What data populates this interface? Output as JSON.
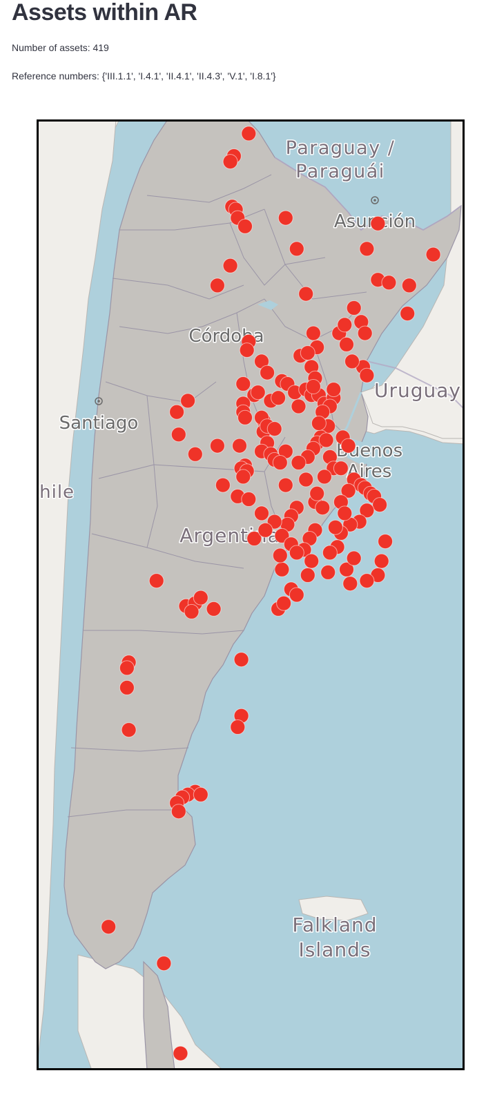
{
  "page": {
    "title": "Assets within AR",
    "count_text": "Number of assets: 419",
    "refs_text": "Reference numbers: {'III.1.1', 'I.4.1', 'II.4.1', 'II.4.3', 'V.1', 'I.8.1'}"
  },
  "map": {
    "country": "Argentina",
    "place_labels": [
      {
        "id": "paraguay",
        "lines": [
          "Paraguay /",
          "Paraguái"
        ],
        "kind": "country"
      },
      {
        "id": "asuncion",
        "lines": [
          "Asunción"
        ],
        "kind": "city"
      },
      {
        "id": "uruguay",
        "lines": [
          "Uruguay"
        ],
        "kind": "country"
      },
      {
        "id": "santiago",
        "lines": [
          "Santiago"
        ],
        "kind": "city"
      },
      {
        "id": "chile",
        "lines": [
          "Chile"
        ],
        "kind": "country"
      },
      {
        "id": "cordoba",
        "lines": [
          "Córdoba"
        ],
        "kind": "city"
      },
      {
        "id": "buenos-aires",
        "lines": [
          "Buenos",
          "Aires"
        ],
        "kind": "city"
      },
      {
        "id": "argentina",
        "lines": [
          "Argentina"
        ],
        "kind": "country"
      },
      {
        "id": "falklands",
        "lines": [
          "Falkland",
          "Islands"
        ],
        "kind": "country"
      }
    ],
    "colors": {
      "sea": "#aed0dc",
      "land": "#f0eeea",
      "country_fill": "#c5c2be",
      "borders": "#9a94a6",
      "marker": "#ef3328"
    },
    "markers": [
      [
        -22.1,
        -64.6
      ],
      [
        -22.9,
        -65.4
      ],
      [
        -23.1,
        -65.6
      ],
      [
        -24.7,
        -65.5
      ],
      [
        -24.8,
        -65.3
      ],
      [
        -25.1,
        -65.2
      ],
      [
        -25.4,
        -64.8
      ],
      [
        -26.8,
        -65.6
      ],
      [
        -27.5,
        -66.3
      ],
      [
        -26.2,
        -58.2
      ],
      [
        -25.3,
        -57.6
      ],
      [
        -26.4,
        -54.6
      ],
      [
        -27.5,
        -55.9
      ],
      [
        -27.3,
        -57.6
      ],
      [
        -27.4,
        -57.0
      ],
      [
        -28.3,
        -58.9
      ],
      [
        -28.8,
        -58.5
      ],
      [
        -29.2,
        -58.3
      ],
      [
        -29.2,
        -59.7
      ],
      [
        -28.9,
        -59.4
      ],
      [
        -29.6,
        -59.3
      ],
      [
        -28.5,
        -56.0
      ],
      [
        -30.4,
        -58.4
      ],
      [
        -30.2,
        -59.0
      ],
      [
        -30.7,
        -58.2
      ],
      [
        -29.5,
        -64.6
      ],
      [
        -29.8,
        -64.7
      ],
      [
        -30.2,
        -63.9
      ],
      [
        -30.6,
        -63.6
      ],
      [
        -31.4,
        -64.3
      ],
      [
        -31.7,
        -64.9
      ],
      [
        -31.0,
        -64.9
      ],
      [
        -31.3,
        -64.1
      ],
      [
        -31.6,
        -63.4
      ],
      [
        -31.5,
        -63.0
      ],
      [
        -32.3,
        -63.8
      ],
      [
        -32.2,
        -63.9
      ],
      [
        -32.7,
        -63.8
      ],
      [
        -33.1,
        -63.6
      ],
      [
        -33.4,
        -63.9
      ],
      [
        -32.5,
        -63.6
      ],
      [
        -32.6,
        -63.2
      ],
      [
        -33.5,
        -63.4
      ],
      [
        -33.7,
        -63.2
      ],
      [
        -32.0,
        -64.9
      ],
      [
        -32.2,
        -64.8
      ],
      [
        -31.6,
        -67.9
      ],
      [
        -32.0,
        -68.5
      ],
      [
        -32.8,
        -68.4
      ],
      [
        -33.5,
        -67.5
      ],
      [
        -33.2,
        -66.3
      ],
      [
        -33.2,
        -65.1
      ],
      [
        -33.9,
        -64.8
      ],
      [
        -34.0,
        -65.0
      ],
      [
        -34.1,
        -64.7
      ],
      [
        -34.3,
        -64.9
      ],
      [
        -34.6,
        -66.0
      ],
      [
        -35.0,
        -65.2
      ],
      [
        -35.1,
        -64.6
      ],
      [
        -30.9,
        -62.8
      ],
      [
        -31.0,
        -62.5
      ],
      [
        -31.3,
        -62.1
      ],
      [
        -31.2,
        -61.5
      ],
      [
        -31.4,
        -61.2
      ],
      [
        -31.4,
        -60.8
      ],
      [
        -31.7,
        -60.5
      ],
      [
        -31.5,
        -60.0
      ],
      [
        -31.8,
        -60.2
      ],
      [
        -32.0,
        -60.6
      ],
      [
        -32.5,
        -60.3
      ],
      [
        -32.9,
        -60.7
      ],
      [
        -33.1,
        -60.9
      ],
      [
        -33.3,
        -61.1
      ],
      [
        -33.6,
        -61.4
      ],
      [
        -32.4,
        -60.8
      ],
      [
        -33.0,
        -60.4
      ],
      [
        -33.6,
        -60.2
      ],
      [
        -34.0,
        -60.0
      ],
      [
        -34.3,
        -60.5
      ],
      [
        -34.0,
        -59.6
      ],
      [
        -34.4,
        -58.9
      ],
      [
        -34.6,
        -58.5
      ],
      [
        -34.7,
        -58.3
      ],
      [
        -34.9,
        -58.0
      ],
      [
        -35.0,
        -57.8
      ],
      [
        -35.3,
        -57.5
      ],
      [
        -35.5,
        -58.2
      ],
      [
        -35.9,
        -58.6
      ],
      [
        -36.0,
        -59.1
      ],
      [
        -36.3,
        -59.6
      ],
      [
        -36.8,
        -59.8
      ],
      [
        -37.0,
        -60.2
      ],
      [
        -36.6,
        -57.2
      ],
      [
        -37.3,
        -57.4
      ],
      [
        -37.8,
        -57.6
      ],
      [
        -38.0,
        -58.2
      ],
      [
        -38.1,
        -59.1
      ],
      [
        -37.6,
        -59.3
      ],
      [
        -37.2,
        -58.9
      ],
      [
        -36.2,
        -61.0
      ],
      [
        -36.5,
        -61.3
      ],
      [
        -36.9,
        -61.6
      ],
      [
        -37.3,
        -61.2
      ],
      [
        -37.8,
        -61.4
      ],
      [
        -35.4,
        -62.0
      ],
      [
        -35.7,
        -62.3
      ],
      [
        -36.0,
        -62.5
      ],
      [
        -36.4,
        -62.8
      ],
      [
        -36.7,
        -62.3
      ],
      [
        -37.0,
        -62.0
      ],
      [
        -36.5,
        -64.3
      ],
      [
        -35.9,
        -63.2
      ],
      [
        -38.3,
        -62.3
      ],
      [
        -38.5,
        -62.0
      ],
      [
        -39.0,
        -63.0
      ],
      [
        -38.8,
        -62.7
      ],
      [
        -37.6,
        -62.8
      ],
      [
        -37.1,
        -62.9
      ],
      [
        -36.2,
        -63.7
      ],
      [
        -35.6,
        -63.9
      ],
      [
        -38.9,
        -68.0
      ],
      [
        -38.8,
        -67.5
      ],
      [
        -38.6,
        -67.2
      ],
      [
        -39.1,
        -67.7
      ],
      [
        -39.0,
        -66.5
      ],
      [
        -38.0,
        -69.6
      ],
      [
        -40.9,
        -71.1
      ],
      [
        -41.1,
        -71.2
      ],
      [
        -41.8,
        -71.2
      ],
      [
        -43.3,
        -71.1
      ],
      [
        -40.8,
        -65.0
      ],
      [
        -42.8,
        -65.0
      ],
      [
        -43.2,
        -65.2
      ],
      [
        -45.5,
        -67.5
      ],
      [
        -45.6,
        -67.9
      ],
      [
        -45.6,
        -67.2
      ],
      [
        -45.7,
        -68.2
      ],
      [
        -45.9,
        -68.5
      ],
      [
        -46.2,
        -68.4
      ],
      [
        -50.3,
        -72.2
      ],
      [
        -51.6,
        -69.2
      ],
      [
        -54.8,
        -68.3
      ],
      [
        -25.1,
        -62.6
      ],
      [
        -26.2,
        -62.0
      ],
      [
        -27.8,
        -61.5
      ],
      [
        -30.0,
        -61.8
      ],
      [
        -29.7,
        -60.9
      ],
      [
        -31.8,
        -61.9
      ],
      [
        -33.8,
        -61.9
      ],
      [
        -34.4,
        -61.5
      ],
      [
        -35.2,
        -61.0
      ],
      [
        -35.4,
        -60.6
      ],
      [
        -34.9,
        -60.9
      ],
      [
        -33.4,
        -62.6
      ],
      [
        -33.8,
        -62.9
      ],
      [
        -34.6,
        -62.6
      ],
      [
        -30.4,
        -61.2
      ],
      [
        -30.8,
        -61.0
      ],
      [
        -29.9,
        -61.4
      ],
      [
        -29.2,
        -61.1
      ],
      [
        -31.1,
        -61.1
      ],
      [
        -31.2,
        -60.0
      ],
      [
        -32.9,
        -59.5
      ],
      [
        -33.2,
        -59.2
      ],
      [
        -34.8,
        -59.2
      ],
      [
        -35.2,
        -59.6
      ],
      [
        -35.6,
        -59.4
      ],
      [
        -36.1,
        -59.9
      ],
      [
        -37.7,
        -60.3
      ]
    ]
  }
}
